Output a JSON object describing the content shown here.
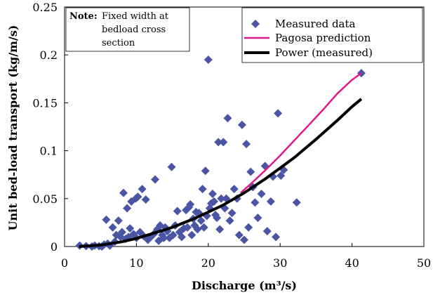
{
  "chart_data": {
    "type": "scatter",
    "xlabel": "Discharge (m³/s)",
    "ylabel": "Unit bed-load transport (kg/m/s)",
    "xlim": [
      0,
      50
    ],
    "ylim": [
      0,
      0.25
    ],
    "x_ticks": [
      "0",
      "10",
      "20",
      "30",
      "40",
      "50"
    ],
    "y_ticks": [
      "0",
      "0.05",
      "0.1",
      "0.15",
      "0.2",
      "0.25"
    ],
    "grid": false,
    "legend_position": "top-right",
    "note": {
      "label": "Note:",
      "lines": [
        "Fixed width at",
        "bedload cross",
        "section"
      ]
    },
    "series": [
      {
        "name": "Measured data",
        "type": "scatter",
        "marker": "diamond",
        "color": "#4a55a3",
        "points": [
          [
            2.1,
            0.001
          ],
          [
            3.0,
            0.0005
          ],
          [
            3.8,
            0.0
          ],
          [
            4.2,
            0.001
          ],
          [
            4.8,
            0.0005
          ],
          [
            5.2,
            0.0
          ],
          [
            5.5,
            0.002
          ],
          [
            5.8,
            0.028
          ],
          [
            6.0,
            0.003
          ],
          [
            6.3,
            0.001
          ],
          [
            6.7,
            0.02
          ],
          [
            7.0,
            0.005
          ],
          [
            7.2,
            0.012
          ],
          [
            7.5,
            0.027
          ],
          [
            7.8,
            0.01
          ],
          [
            8.0,
            0.015
          ],
          [
            8.2,
            0.056
          ],
          [
            8.5,
            0.008
          ],
          [
            8.7,
            0.04
          ],
          [
            8.9,
            0.01
          ],
          [
            9.1,
            0.019
          ],
          [
            9.3,
            0.047
          ],
          [
            9.6,
            0.013
          ],
          [
            9.9,
            0.05
          ],
          [
            10.0,
            0.009
          ],
          [
            10.2,
            0.052
          ],
          [
            10.5,
            0.015
          ],
          [
            10.8,
            0.06
          ],
          [
            11.0,
            0.011
          ],
          [
            11.3,
            0.049
          ],
          [
            11.6,
            0.007
          ],
          [
            12.0,
            0.01
          ],
          [
            12.4,
            0.013
          ],
          [
            12.6,
            0.07
          ],
          [
            12.9,
            0.018
          ],
          [
            13.1,
            0.006
          ],
          [
            13.3,
            0.022
          ],
          [
            13.6,
            0.012
          ],
          [
            13.8,
            0.009
          ],
          [
            14.0,
            0.02
          ],
          [
            14.3,
            0.016
          ],
          [
            14.6,
            0.009
          ],
          [
            14.9,
            0.083
          ],
          [
            15.1,
            0.012
          ],
          [
            15.4,
            0.022
          ],
          [
            15.7,
            0.037
          ],
          [
            16.0,
            0.015
          ],
          [
            16.3,
            0.01
          ],
          [
            16.6,
            0.019
          ],
          [
            16.9,
            0.038
          ],
          [
            17.1,
            0.02
          ],
          [
            17.3,
            0.041
          ],
          [
            17.5,
            0.044
          ],
          [
            17.7,
            0.012
          ],
          [
            17.9,
            0.029
          ],
          [
            18.1,
            0.022
          ],
          [
            18.3,
            0.036
          ],
          [
            18.5,
            0.018
          ],
          [
            18.7,
            0.035
          ],
          [
            19.0,
            0.027
          ],
          [
            19.2,
            0.06
          ],
          [
            19.4,
            0.02
          ],
          [
            19.6,
            0.079
          ],
          [
            19.8,
            0.032
          ],
          [
            20.0,
            0.195
          ],
          [
            20.2,
            0.04
          ],
          [
            20.4,
            0.045
          ],
          [
            20.6,
            0.055
          ],
          [
            20.8,
            0.047
          ],
          [
            21.0,
            0.033
          ],
          [
            21.2,
            0.03
          ],
          [
            21.4,
            0.109
          ],
          [
            21.6,
            0.018
          ],
          [
            21.8,
            0.05
          ],
          [
            22.1,
            0.109
          ],
          [
            22.3,
            0.04
          ],
          [
            22.5,
            0.05
          ],
          [
            22.7,
            0.134
          ],
          [
            23.0,
            0.027
          ],
          [
            23.3,
            0.035
          ],
          [
            23.6,
            0.06
          ],
          [
            24.0,
            0.05
          ],
          [
            24.3,
            0.012
          ],
          [
            24.7,
            0.127
          ],
          [
            25.0,
            0.007
          ],
          [
            25.3,
            0.107
          ],
          [
            25.6,
            0.02
          ],
          [
            25.9,
            0.078
          ],
          [
            26.2,
            0.062
          ],
          [
            26.5,
            0.046
          ],
          [
            26.9,
            0.03
          ],
          [
            27.4,
            0.055
          ],
          [
            27.9,
            0.084
          ],
          [
            28.2,
            0.016
          ],
          [
            28.7,
            0.047
          ],
          [
            29.0,
            0.073
          ],
          [
            29.4,
            0.01
          ],
          [
            29.7,
            0.139
          ],
          [
            30.1,
            0.074
          ],
          [
            30.5,
            0.08
          ],
          [
            32.3,
            0.046
          ],
          [
            41.3,
            0.181
          ]
        ]
      },
      {
        "name": "Pagosa prediction",
        "type": "line",
        "color": "#e0198a",
        "points": [
          [
            24.5,
            0.056
          ],
          [
            26.0,
            0.066
          ],
          [
            28.0,
            0.08
          ],
          [
            30.0,
            0.095
          ],
          [
            32.0,
            0.111
          ],
          [
            34.0,
            0.127
          ],
          [
            36.0,
            0.143
          ],
          [
            38.0,
            0.16
          ],
          [
            40.0,
            0.174
          ],
          [
            41.3,
            0.181
          ]
        ]
      },
      {
        "name": "Power (measured)",
        "type": "line",
        "color": "#000000",
        "points": [
          [
            2.0,
            0.0
          ],
          [
            5.0,
            0.0015
          ],
          [
            8.0,
            0.005
          ],
          [
            10.0,
            0.0085
          ],
          [
            12.0,
            0.013
          ],
          [
            15.0,
            0.02
          ],
          [
            18.0,
            0.029
          ],
          [
            20.0,
            0.036
          ],
          [
            22.0,
            0.043
          ],
          [
            25.0,
            0.056
          ],
          [
            28.0,
            0.071
          ],
          [
            30.0,
            0.082
          ],
          [
            32.0,
            0.093
          ],
          [
            35.0,
            0.112
          ],
          [
            38.0,
            0.132
          ],
          [
            40.0,
            0.146
          ],
          [
            41.3,
            0.154
          ]
        ]
      }
    ]
  }
}
